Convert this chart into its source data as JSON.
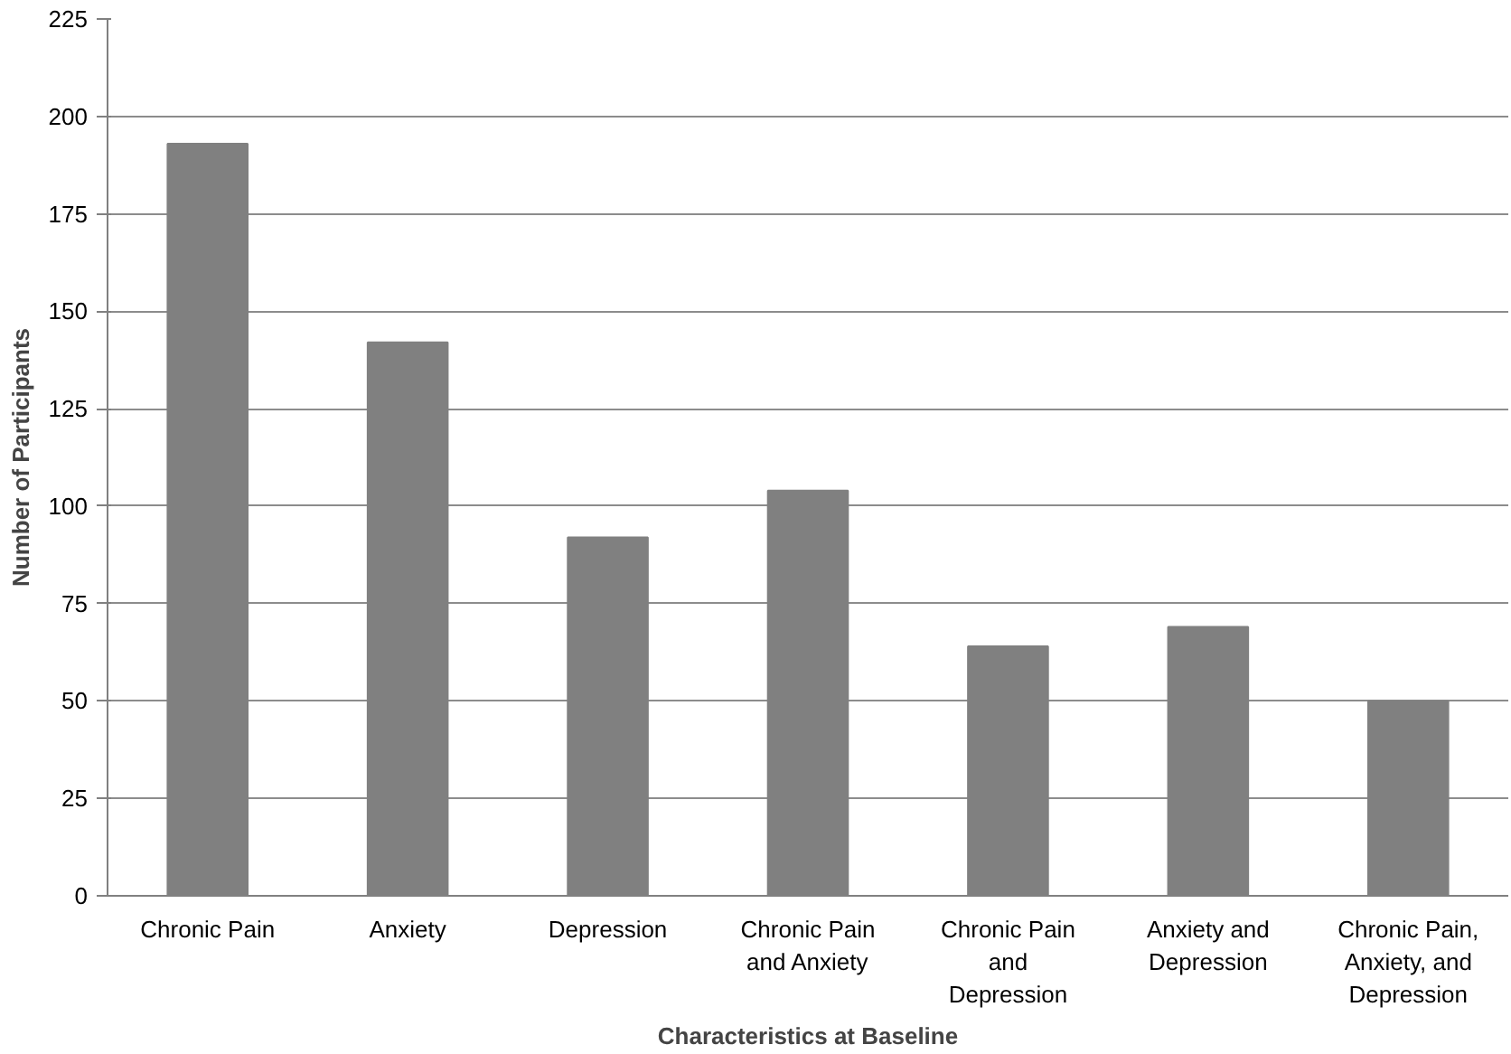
{
  "chart_data": {
    "type": "bar",
    "xlabel": "Characteristics at Baseline",
    "ylabel": "Number of Participants",
    "categories": [
      "Chronic Pain",
      "Anxiety",
      "Depression",
      "Chronic Pain and Anxiety",
      "Chronic Pain and Depression",
      "Anxiety and Depression",
      "Chronic Pain, Anxiety, and Depression"
    ],
    "values": [
      193,
      142,
      92,
      104,
      64,
      69,
      50
    ],
    "color": "#808080",
    "ylim": [
      0,
      225
    ],
    "yticks": [
      0,
      25,
      50,
      75,
      100,
      125,
      150,
      175,
      200,
      225
    ],
    "grid": "y"
  }
}
